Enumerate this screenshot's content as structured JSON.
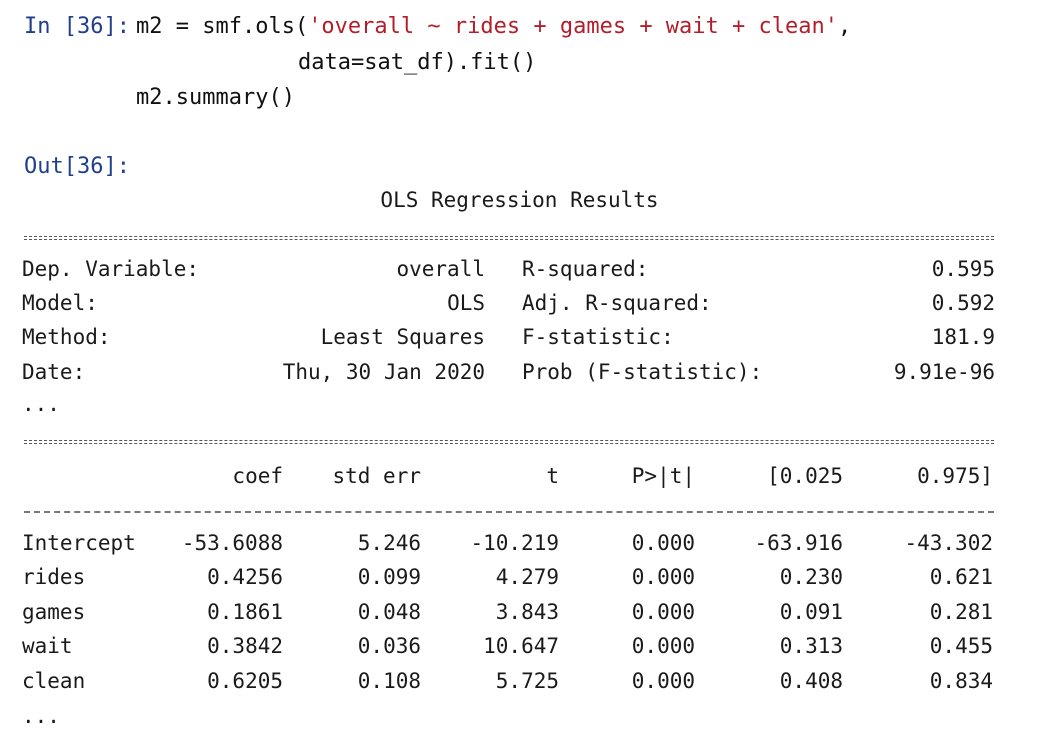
{
  "input_prompt": "In [36]:",
  "code": {
    "line1_pre": "m2 = smf.ols(",
    "line1_str": "'overall ~ rides + games + wait + clean'",
    "line1_post": ",",
    "line2": "data=sat_df).fit()",
    "line3": "m2.summary()"
  },
  "output_prompt": "Out[36]:",
  "summary": {
    "title": "OLS Regression Results",
    "ellipsis_top": "...",
    "ellipsis_bottom": "...",
    "info_rows": [
      {
        "left_label": "Dep. Variable:",
        "left_value": "overall",
        "right_label": "R-squared:",
        "right_value": "0.595"
      },
      {
        "left_label": "Model:",
        "left_value": "OLS",
        "right_label": "Adj. R-squared:",
        "right_value": "0.592"
      },
      {
        "left_label": "Method:",
        "left_value": "Least Squares",
        "right_label": "F-statistic:",
        "right_value": "181.9"
      },
      {
        "left_label": "Date:",
        "left_value": "Thu, 30 Jan 2020",
        "right_label": "Prob (F-statistic):",
        "right_value": "9.91e-96"
      }
    ],
    "coef_headers": [
      "coef",
      "std err",
      "t",
      "P>|t|",
      "[0.025",
      "0.975]"
    ],
    "coef_rows": [
      {
        "name": "Intercept",
        "values": [
          "-53.6088",
          "5.246",
          "-10.219",
          "0.000",
          "-63.916",
          "-43.302"
        ]
      },
      {
        "name": "rides",
        "values": [
          "0.4256",
          "0.099",
          "4.279",
          "0.000",
          "0.230",
          "0.621"
        ]
      },
      {
        "name": "games",
        "values": [
          "0.1861",
          "0.048",
          "3.843",
          "0.000",
          "0.091",
          "0.281"
        ]
      },
      {
        "name": "wait",
        "values": [
          "0.3842",
          "0.036",
          "10.647",
          "0.000",
          "0.313",
          "0.455"
        ]
      },
      {
        "name": "clean",
        "values": [
          "0.6205",
          "0.108",
          "5.725",
          "0.000",
          "0.408",
          "0.834"
        ]
      }
    ]
  }
}
